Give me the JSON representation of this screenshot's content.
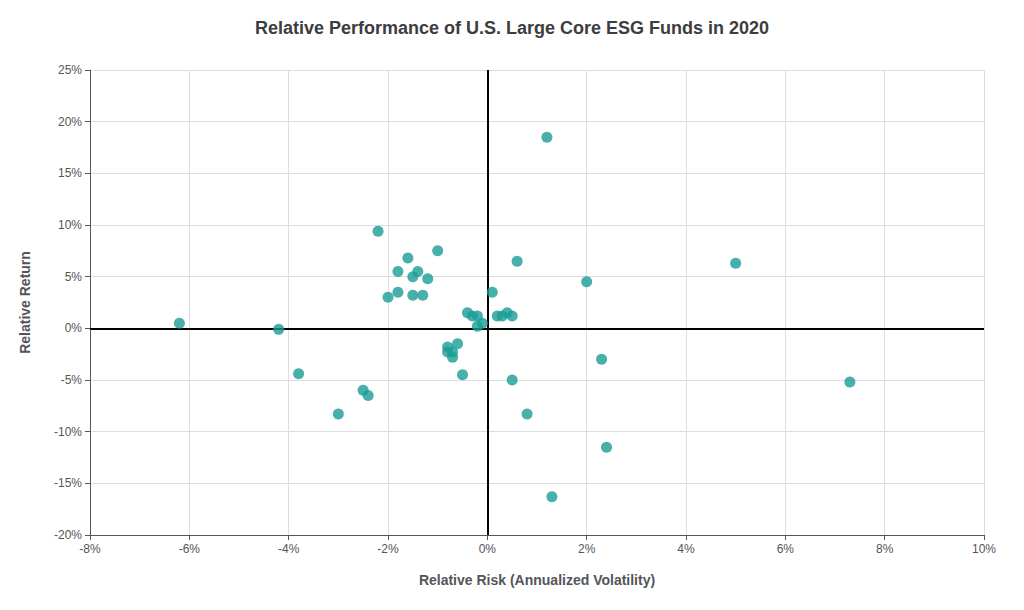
{
  "chart_data": {
    "type": "scatter",
    "title": "Relative Performance of U.S. Large Core ESG Funds in 2020",
    "xlabel": "Relative Risk (Annualized Volatility)",
    "ylabel": "Relative Return",
    "xlim": [
      -0.08,
      0.1
    ],
    "ylim": [
      -0.2,
      0.25
    ],
    "xticks": [
      {
        "value": -0.08,
        "label": "-8%"
      },
      {
        "value": -0.06,
        "label": "-6%"
      },
      {
        "value": -0.04,
        "label": "-4%"
      },
      {
        "value": -0.02,
        "label": "-2%"
      },
      {
        "value": 0.0,
        "label": "0%"
      },
      {
        "value": 0.02,
        "label": "2%"
      },
      {
        "value": 0.04,
        "label": "4%"
      },
      {
        "value": 0.06,
        "label": "6%"
      },
      {
        "value": 0.08,
        "label": "8%"
      },
      {
        "value": 0.1,
        "label": "10%"
      }
    ],
    "yticks": [
      {
        "value": -0.2,
        "label": "-20%"
      },
      {
        "value": -0.15,
        "label": "-15%"
      },
      {
        "value": -0.1,
        "label": "-10%"
      },
      {
        "value": -0.05,
        "label": "-5%"
      },
      {
        "value": 0.0,
        "label": "0%"
      },
      {
        "value": 0.05,
        "label": "5%"
      },
      {
        "value": 0.1,
        "label": "10%"
      },
      {
        "value": 0.15,
        "label": "15%"
      },
      {
        "value": 0.2,
        "label": "20%"
      },
      {
        "value": 0.25,
        "label": "25%"
      }
    ],
    "grid": true,
    "color": "#1a9c96",
    "x": [
      -0.062,
      -0.042,
      -0.038,
      -0.03,
      -0.025,
      -0.024,
      -0.022,
      -0.02,
      -0.018,
      -0.018,
      -0.016,
      -0.015,
      -0.015,
      -0.014,
      -0.013,
      -0.012,
      -0.01,
      -0.008,
      -0.008,
      -0.007,
      -0.007,
      -0.006,
      -0.005,
      -0.004,
      -0.003,
      -0.002,
      -0.002,
      -0.001,
      0.001,
      0.002,
      0.003,
      0.004,
      0.005,
      0.006,
      0.005,
      0.008,
      0.012,
      0.02,
      0.023,
      0.024,
      0.013,
      0.05,
      0.073
    ],
    "values": [
      0.005,
      -0.001,
      -0.044,
      -0.083,
      -0.06,
      -0.065,
      0.094,
      0.03,
      0.035,
      0.055,
      0.068,
      0.05,
      0.032,
      0.055,
      0.032,
      0.048,
      0.075,
      -0.018,
      -0.023,
      -0.023,
      -0.028,
      -0.015,
      -0.045,
      0.015,
      0.012,
      0.012,
      0.002,
      0.005,
      0.035,
      0.012,
      0.012,
      0.015,
      0.012,
      0.065,
      -0.05,
      -0.083,
      0.185,
      0.045,
      -0.03,
      -0.115,
      -0.163,
      0.063,
      -0.052
    ]
  }
}
